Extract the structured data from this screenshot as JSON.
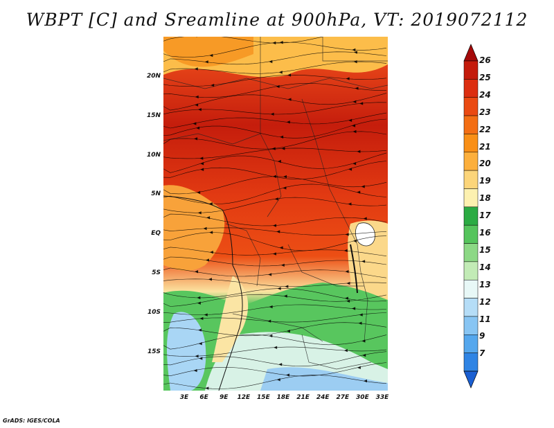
{
  "title": "WBPT [C] and Sreamline at 900hPa, VT: 2019072112",
  "credit": "GrADS: IGES/COLA",
  "map": {
    "lat_labels": [
      "20N",
      "15N",
      "10N",
      "5N",
      "EQ",
      "5S",
      "10S",
      "15S"
    ],
    "lon_labels": [
      "3E",
      "6E",
      "9E",
      "12E",
      "15E",
      "18E",
      "21E",
      "24E",
      "27E",
      "30E",
      "33E"
    ]
  },
  "colorbar": {
    "labels": [
      "26",
      "25",
      "24",
      "23",
      "22",
      "21",
      "20",
      "19",
      "18",
      "17",
      "16",
      "15",
      "14",
      "13",
      "12",
      "11",
      "9",
      "7"
    ],
    "colors": [
      "#a50a0a",
      "#c41b0c",
      "#dc2e10",
      "#ea4a12",
      "#f36e14",
      "#f98f16",
      "#fcaf3c",
      "#fcd57a",
      "#fdf1b0",
      "#2bab43",
      "#55c45c",
      "#8cd885",
      "#c2ebb6",
      "#e8f8f7",
      "#b5ddf7",
      "#88c5f3",
      "#55a7ed",
      "#2f84e4",
      "#1a5fd2"
    ]
  }
}
